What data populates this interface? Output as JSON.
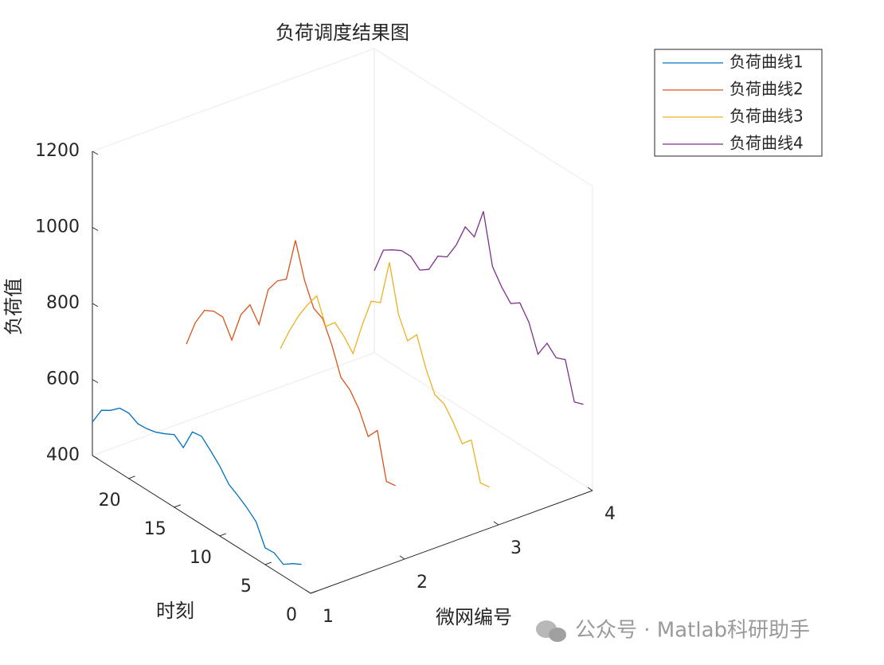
{
  "chart_data": {
    "type": "line3d",
    "title": "负荷调度结果图",
    "xlabel": "微网编号",
    "ylabel": "时刻",
    "zlabel": "负荷值",
    "xlim": [
      1,
      4
    ],
    "xticks": [
      1,
      2,
      3,
      4
    ],
    "ylim": [
      0,
      24
    ],
    "yticks": [
      0,
      5,
      10,
      15,
      20
    ],
    "zlim": [
      400,
      1200
    ],
    "zticks": [
      400,
      600,
      800,
      1000,
      1200
    ],
    "time": [
      1,
      2,
      3,
      4,
      5,
      6,
      7,
      8,
      9,
      10,
      11,
      12,
      13,
      14,
      15,
      16,
      17,
      18,
      19,
      20,
      21,
      22,
      23,
      24
    ],
    "legend": "upper right",
    "series": [
      {
        "name": "负荷曲线1",
        "color": "#0072BD",
        "x": 1,
        "values": [
          461,
          448,
          431,
          446,
          444,
          498,
          519,
          536,
          551,
          584,
          609,
          632,
          628,
          572,
          591,
          578,
          567,
          561,
          559,
          572,
          570,
          549,
          534,
          488
        ]
      },
      {
        "name": "负荷曲线2",
        "color": "#D95319",
        "x": 2,
        "values": [
          578,
          574,
          693,
          662,
          718,
          754,
          772,
          842,
          896,
          909,
          967,
          1057,
          940,
          920,
          882,
          775,
          812,
          771,
          689,
          735,
          735,
          722,
          675,
          603
        ]
      },
      {
        "name": "负荷曲线3",
        "color": "#EDB120",
        "x": 3,
        "values": [
          484,
          480,
          578,
          553,
          595,
          628,
          636,
          691,
          764,
          733,
          787,
          909,
          788,
          777,
          699,
          609,
          639,
          660,
          635,
          700,
          662,
          617,
          563,
          501
        ]
      },
      {
        "name": "负荷曲线4",
        "color": "#7E2F8E",
        "x": 4,
        "values": [
          612,
          603,
          699,
          689,
          712,
          668,
          737,
          773,
          756,
          785,
          823,
          953,
          871,
          882,
          819,
          773,
          760,
          710,
          693,
          714,
          714,
          701,
          685,
          616
        ]
      }
    ]
  },
  "watermark": "公众号 · Matlab科研助手"
}
